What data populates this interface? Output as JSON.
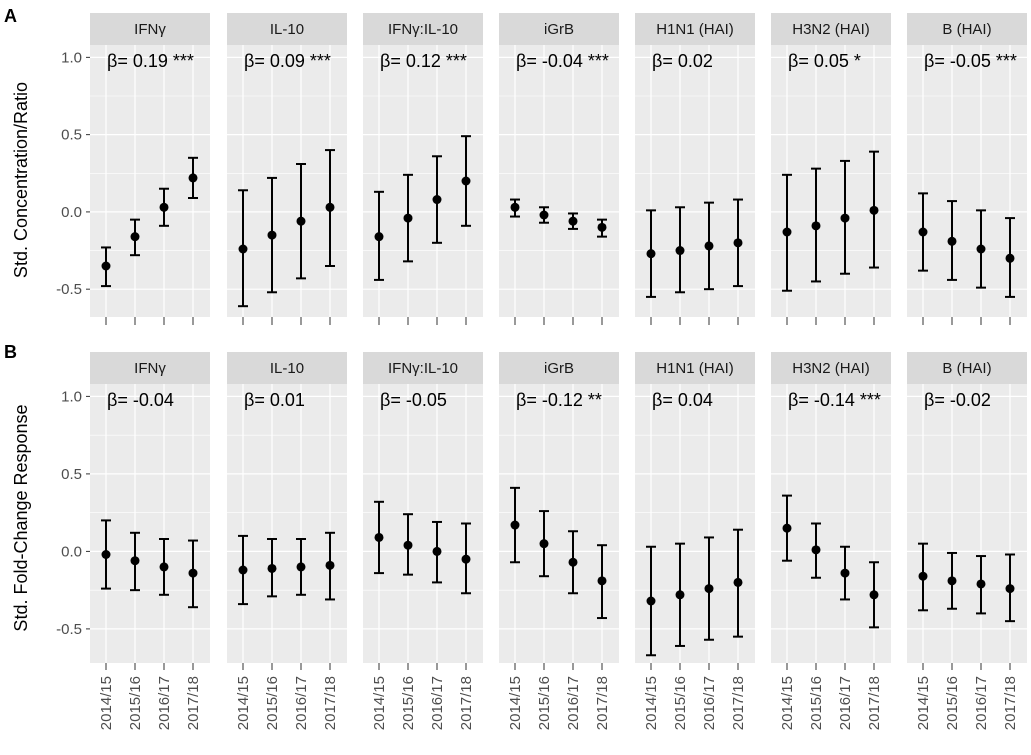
{
  "figure": {
    "categories": [
      "2014/15",
      "2015/16",
      "2016/17",
      "2017/18"
    ]
  },
  "colors": {
    "panel_bg": "#ebebeb",
    "strip_bg": "#d9d9d9",
    "grid_major": "#ffffff",
    "point": "#000000"
  },
  "chart_data": [
    {
      "type": "scatter",
      "row_label": "A",
      "ylabel": "Std. Concentration/Ratio",
      "ylim": [
        -0.68,
        1.08
      ],
      "y_ticks": [
        -0.5,
        0.0,
        0.5,
        1.0
      ],
      "y_tick_labels": [
        "-0.5",
        "0.0",
        "0.5",
        "1.0"
      ],
      "categories": [
        "2014/15",
        "2015/16",
        "2016/17",
        "2017/18"
      ],
      "error_bars": true,
      "grid": true,
      "panels": [
        {
          "facet": "IFNγ",
          "beta": "β= 0.19 ***",
          "points": [
            {
              "y": -0.35,
              "lo": -0.48,
              "hi": -0.23
            },
            {
              "y": -0.16,
              "lo": -0.28,
              "hi": -0.05
            },
            {
              "y": 0.03,
              "lo": -0.09,
              "hi": 0.15
            },
            {
              "y": 0.22,
              "lo": 0.09,
              "hi": 0.35
            }
          ]
        },
        {
          "facet": "IL-10",
          "beta": "β= 0.09 ***",
          "points": [
            {
              "y": -0.24,
              "lo": -0.61,
              "hi": 0.14
            },
            {
              "y": -0.15,
              "lo": -0.52,
              "hi": 0.22
            },
            {
              "y": -0.06,
              "lo": -0.43,
              "hi": 0.31
            },
            {
              "y": 0.03,
              "lo": -0.35,
              "hi": 0.4
            }
          ]
        },
        {
          "facet": "IFNγ:IL-10",
          "beta": "β= 0.12 ***",
          "points": [
            {
              "y": -0.16,
              "lo": -0.44,
              "hi": 0.13
            },
            {
              "y": -0.04,
              "lo": -0.32,
              "hi": 0.24
            },
            {
              "y": 0.08,
              "lo": -0.2,
              "hi": 0.36
            },
            {
              "y": 0.2,
              "lo": -0.09,
              "hi": 0.49
            }
          ]
        },
        {
          "facet": "iGrB",
          "beta": "β= -0.04 ***",
          "points": [
            {
              "y": 0.03,
              "lo": -0.03,
              "hi": 0.08
            },
            {
              "y": -0.02,
              "lo": -0.07,
              "hi": 0.03
            },
            {
              "y": -0.06,
              "lo": -0.11,
              "hi": -0.01
            },
            {
              "y": -0.1,
              "lo": -0.16,
              "hi": -0.05
            }
          ]
        },
        {
          "facet": "H1N1 (HAI)",
          "beta": "β= 0.02",
          "points": [
            {
              "y": -0.27,
              "lo": -0.55,
              "hi": 0.01
            },
            {
              "y": -0.25,
              "lo": -0.52,
              "hi": 0.03
            },
            {
              "y": -0.22,
              "lo": -0.5,
              "hi": 0.06
            },
            {
              "y": -0.2,
              "lo": -0.48,
              "hi": 0.08
            }
          ]
        },
        {
          "facet": "H3N2 (HAI)",
          "beta": "β= 0.05 *",
          "points": [
            {
              "y": -0.13,
              "lo": -0.51,
              "hi": 0.24
            },
            {
              "y": -0.09,
              "lo": -0.45,
              "hi": 0.28
            },
            {
              "y": -0.04,
              "lo": -0.4,
              "hi": 0.33
            },
            {
              "y": 0.01,
              "lo": -0.36,
              "hi": 0.39
            }
          ]
        },
        {
          "facet": "B (HAI)",
          "beta": "β= -0.05 ***",
          "points": [
            {
              "y": -0.13,
              "lo": -0.38,
              "hi": 0.12
            },
            {
              "y": -0.19,
              "lo": -0.44,
              "hi": 0.07
            },
            {
              "y": -0.24,
              "lo": -0.49,
              "hi": 0.01
            },
            {
              "y": -0.3,
              "lo": -0.55,
              "hi": -0.04
            }
          ]
        }
      ]
    },
    {
      "type": "scatter",
      "row_label": "B",
      "ylabel": "Std. Fold-Change Response",
      "ylim": [
        -0.72,
        1.08
      ],
      "y_ticks": [
        -0.5,
        0.0,
        0.5,
        1.0
      ],
      "y_tick_labels": [
        "-0.5",
        "0.0",
        "0.5",
        "1.0"
      ],
      "categories": [
        "2014/15",
        "2015/16",
        "2016/17",
        "2017/18"
      ],
      "error_bars": true,
      "grid": true,
      "panels": [
        {
          "facet": "IFNγ",
          "beta": "β= -0.04",
          "points": [
            {
              "y": -0.02,
              "lo": -0.24,
              "hi": 0.2
            },
            {
              "y": -0.06,
              "lo": -0.25,
              "hi": 0.12
            },
            {
              "y": -0.1,
              "lo": -0.28,
              "hi": 0.08
            },
            {
              "y": -0.14,
              "lo": -0.36,
              "hi": 0.07
            }
          ]
        },
        {
          "facet": "IL-10",
          "beta": "β= 0.01",
          "points": [
            {
              "y": -0.12,
              "lo": -0.34,
              "hi": 0.1
            },
            {
              "y": -0.11,
              "lo": -0.29,
              "hi": 0.08
            },
            {
              "y": -0.1,
              "lo": -0.28,
              "hi": 0.08
            },
            {
              "y": -0.09,
              "lo": -0.31,
              "hi": 0.12
            }
          ]
        },
        {
          "facet": "IFNγ:IL-10",
          "beta": "β= -0.05",
          "points": [
            {
              "y": 0.09,
              "lo": -0.14,
              "hi": 0.32
            },
            {
              "y": 0.04,
              "lo": -0.15,
              "hi": 0.24
            },
            {
              "y": 0.0,
              "lo": -0.2,
              "hi": 0.19
            },
            {
              "y": -0.05,
              "lo": -0.27,
              "hi": 0.18
            }
          ]
        },
        {
          "facet": "iGrB",
          "beta": "β= -0.12 **",
          "points": [
            {
              "y": 0.17,
              "lo": -0.07,
              "hi": 0.41
            },
            {
              "y": 0.05,
              "lo": -0.16,
              "hi": 0.26
            },
            {
              "y": -0.07,
              "lo": -0.27,
              "hi": 0.13
            },
            {
              "y": -0.19,
              "lo": -0.43,
              "hi": 0.04
            }
          ]
        },
        {
          "facet": "H1N1 (HAI)",
          "beta": "β= 0.04",
          "points": [
            {
              "y": -0.32,
              "lo": -0.67,
              "hi": 0.03
            },
            {
              "y": -0.28,
              "lo": -0.61,
              "hi": 0.05
            },
            {
              "y": -0.24,
              "lo": -0.57,
              "hi": 0.09
            },
            {
              "y": -0.2,
              "lo": -0.55,
              "hi": 0.14
            }
          ]
        },
        {
          "facet": "H3N2 (HAI)",
          "beta": "β= -0.14 ***",
          "points": [
            {
              "y": 0.15,
              "lo": -0.06,
              "hi": 0.36
            },
            {
              "y": 0.01,
              "lo": -0.17,
              "hi": 0.18
            },
            {
              "y": -0.14,
              "lo": -0.31,
              "hi": 0.03
            },
            {
              "y": -0.28,
              "lo": -0.49,
              "hi": -0.07
            }
          ]
        },
        {
          "facet": "B (HAI)",
          "beta": "β= -0.02",
          "points": [
            {
              "y": -0.16,
              "lo": -0.38,
              "hi": 0.05
            },
            {
              "y": -0.19,
              "lo": -0.37,
              "hi": -0.01
            },
            {
              "y": -0.21,
              "lo": -0.4,
              "hi": -0.03
            },
            {
              "y": -0.24,
              "lo": -0.45,
              "hi": -0.02
            }
          ]
        }
      ]
    }
  ]
}
